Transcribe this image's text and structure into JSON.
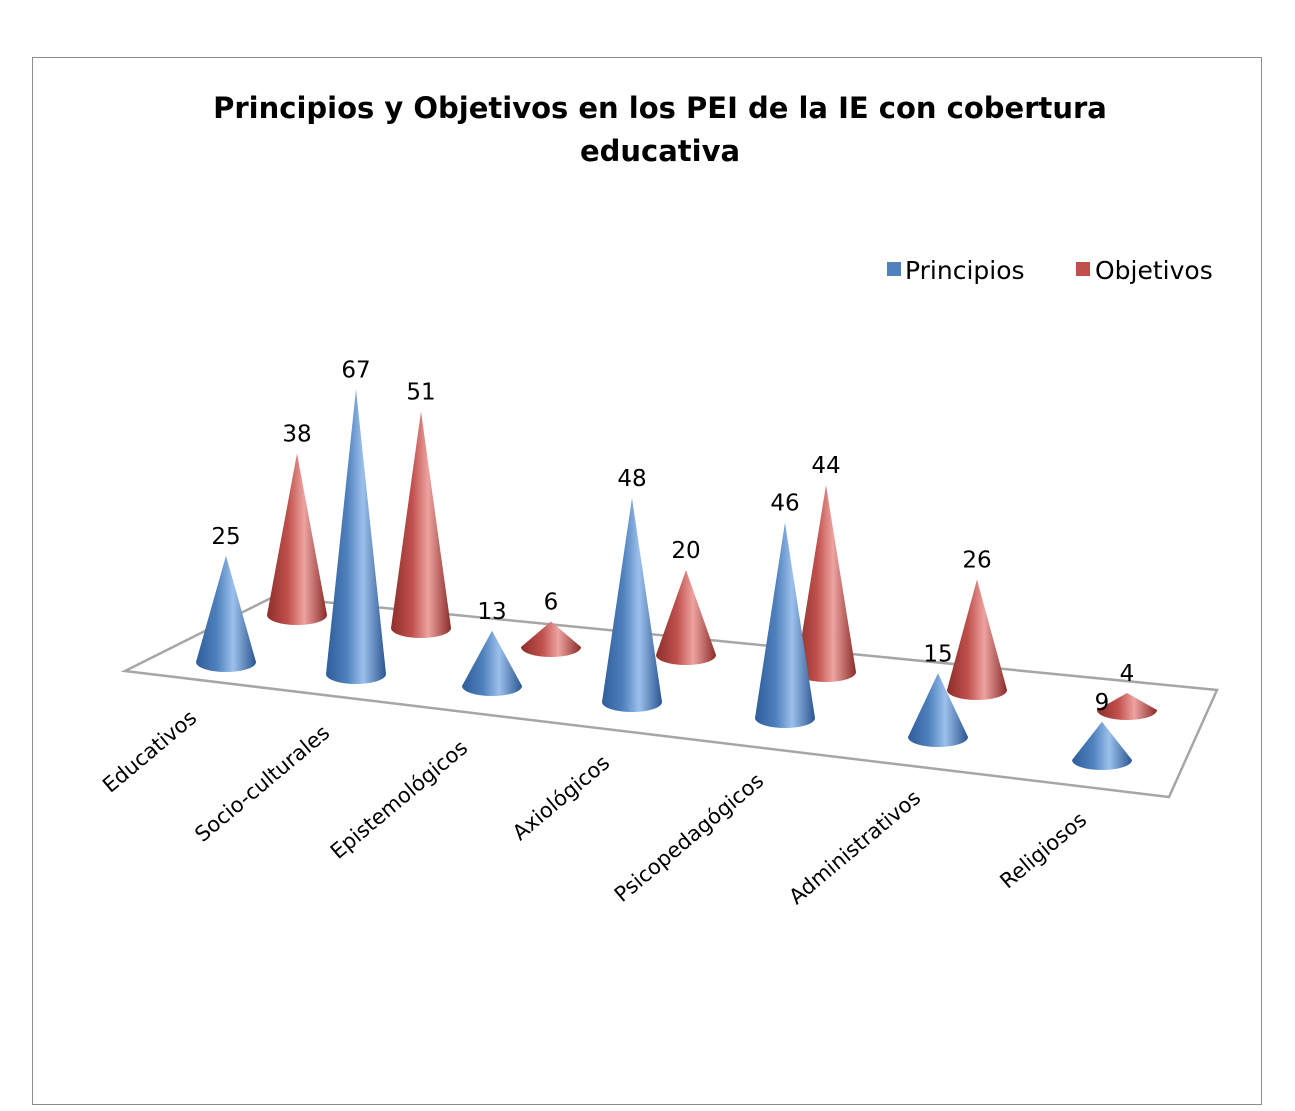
{
  "chart_data": {
    "type": "bar",
    "subtype": "3d-cone",
    "title": "Principios y Objetivos en los PEI de la IE con cobertura educativa",
    "title_lines": [
      "Principios y Objetivos en los PEI de la IE con cobertura",
      "educativa"
    ],
    "categories": [
      "Educativos",
      "Socio-culturales",
      "Epistemológicos",
      "Axiológicos",
      "Psicopedagógicos",
      "Administrativos",
      "Religiosos"
    ],
    "series": [
      {
        "name": "Principios",
        "values": [
          25,
          67,
          13,
          48,
          46,
          15,
          9
        ],
        "color": "#4f81bd"
      },
      {
        "name": "Objetivos",
        "values": [
          38,
          51,
          6,
          20,
          44,
          26,
          4
        ],
        "color": "#c0504d"
      }
    ],
    "ylim": [
      0,
      70
    ],
    "legend_position": "top-right",
    "grid": false,
    "data_labels": true
  }
}
